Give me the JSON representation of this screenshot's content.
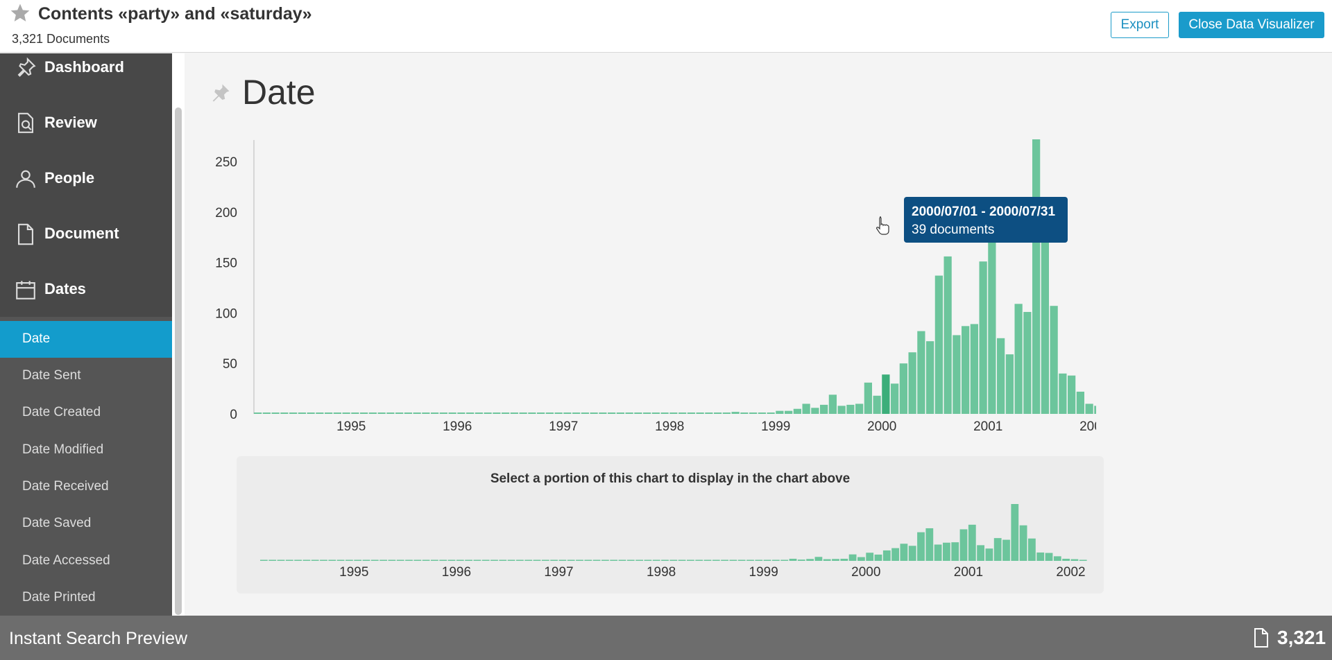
{
  "header": {
    "title": "Contents «party» and «saturday»",
    "subtitle": "3,321 Documents",
    "export_label": "Export",
    "close_label": "Close Data Visualizer",
    "accent": "#1a9bcb"
  },
  "sidebar": {
    "nav": [
      {
        "label": "Dashboard",
        "icon": "pin-icon"
      },
      {
        "label": "Review",
        "icon": "document-search-icon"
      },
      {
        "label": "People",
        "icon": "people-icon"
      },
      {
        "label": "Document",
        "icon": "document-icon"
      },
      {
        "label": "Dates",
        "icon": "calendar-icon"
      }
    ],
    "sub_items": [
      "Date",
      "Date Sent",
      "Date Created",
      "Date Modified",
      "Date Received",
      "Date Saved",
      "Date Accessed",
      "Date Printed"
    ],
    "active_sub_item": "Date"
  },
  "main": {
    "title": "Date",
    "tooltip": {
      "range": "2000/07/01 - 2000/07/31",
      "count": "39 documents"
    },
    "mini_caption": "Select a portion of this chart to display in the chart above"
  },
  "chart_data": {
    "type": "bar",
    "title": "",
    "xlabel": "",
    "ylabel": "",
    "x_ticks": [
      "1995",
      "1996",
      "1997",
      "1998",
      "1999",
      "2000",
      "2001",
      "2002"
    ],
    "y_ticks": [
      0,
      50,
      100,
      150,
      200,
      250
    ],
    "ylim": [
      0,
      272
    ],
    "bar_color": "#6cc59c",
    "highlight_color": "#3cae7a",
    "highlighted_bar": "2000-07",
    "grid": false,
    "series": [
      {
        "values": [
          [
            "1994-08",
            1
          ],
          [
            "1994-09",
            1
          ],
          [
            "1994-10",
            1
          ],
          [
            "1994-11",
            1
          ],
          [
            "1994-12",
            1
          ],
          [
            "1995-01",
            1
          ],
          [
            "1995-02",
            1
          ],
          [
            "1995-03",
            1
          ],
          [
            "1995-04",
            1
          ],
          [
            "1995-05",
            1
          ],
          [
            "1995-06",
            1
          ],
          [
            "1995-07",
            1
          ],
          [
            "1995-08",
            1
          ],
          [
            "1995-09",
            1
          ],
          [
            "1995-10",
            1
          ],
          [
            "1995-11",
            1
          ],
          [
            "1995-12",
            1
          ],
          [
            "1996-01",
            1
          ],
          [
            "1996-02",
            1
          ],
          [
            "1996-03",
            1
          ],
          [
            "1996-04",
            1
          ],
          [
            "1996-05",
            1
          ],
          [
            "1996-06",
            1
          ],
          [
            "1996-07",
            1
          ],
          [
            "1996-08",
            1
          ],
          [
            "1996-09",
            1
          ],
          [
            "1996-10",
            1
          ],
          [
            "1996-11",
            1
          ],
          [
            "1996-12",
            1
          ],
          [
            "1997-01",
            1
          ],
          [
            "1997-02",
            1
          ],
          [
            "1997-03",
            1
          ],
          [
            "1997-04",
            1
          ],
          [
            "1997-05",
            1
          ],
          [
            "1997-06",
            1
          ],
          [
            "1997-07",
            1
          ],
          [
            "1997-08",
            1
          ],
          [
            "1997-09",
            1
          ],
          [
            "1997-10",
            1
          ],
          [
            "1997-11",
            1
          ],
          [
            "1997-12",
            1
          ],
          [
            "1998-01",
            1
          ],
          [
            "1998-02",
            1
          ],
          [
            "1998-03",
            1
          ],
          [
            "1998-04",
            1
          ],
          [
            "1998-05",
            1
          ],
          [
            "1998-06",
            1
          ],
          [
            "1998-07",
            1
          ],
          [
            "1998-08",
            1
          ],
          [
            "1998-09",
            1
          ],
          [
            "1998-10",
            1
          ],
          [
            "1998-11",
            1
          ],
          [
            "1998-12",
            1
          ],
          [
            "1999-01",
            1
          ],
          [
            "1999-02",
            2
          ],
          [
            "1999-03",
            1
          ],
          [
            "1999-04",
            1
          ],
          [
            "1999-05",
            1
          ],
          [
            "1999-06",
            1
          ],
          [
            "1999-07",
            3
          ],
          [
            "1999-08",
            3
          ],
          [
            "1999-09",
            5
          ],
          [
            "1999-10",
            10
          ],
          [
            "1999-11",
            6
          ],
          [
            "1999-12",
            9
          ],
          [
            "2000-01",
            19
          ],
          [
            "2000-02",
            8
          ],
          [
            "2000-03",
            9
          ],
          [
            "2000-04",
            10
          ],
          [
            "2000-05",
            31
          ],
          [
            "2000-06",
            18
          ],
          [
            "2000-07",
            39
          ],
          [
            "2000-08",
            30
          ],
          [
            "2000-09",
            50
          ],
          [
            "2000-10",
            61
          ],
          [
            "2000-11",
            82
          ],
          [
            "2000-12",
            72
          ],
          [
            "2001-01",
            137
          ],
          [
            "2001-02",
            156
          ],
          [
            "2001-03",
            78
          ],
          [
            "2001-04",
            87
          ],
          [
            "2001-05",
            89
          ],
          [
            "2001-06",
            151
          ],
          [
            "2001-07",
            173
          ],
          [
            "2001-08",
            75
          ],
          [
            "2001-09",
            59
          ],
          [
            "2001-10",
            109
          ],
          [
            "2001-11",
            101
          ],
          [
            "2001-12",
            272
          ],
          [
            "2002-01",
            170
          ],
          [
            "2002-02",
            107
          ],
          [
            "2002-03",
            40
          ],
          [
            "2002-04",
            38
          ],
          [
            "2002-05",
            22
          ],
          [
            "2002-06",
            10
          ],
          [
            "2002-07",
            8
          ],
          [
            "2002-08",
            2
          ]
        ]
      }
    ]
  }
}
